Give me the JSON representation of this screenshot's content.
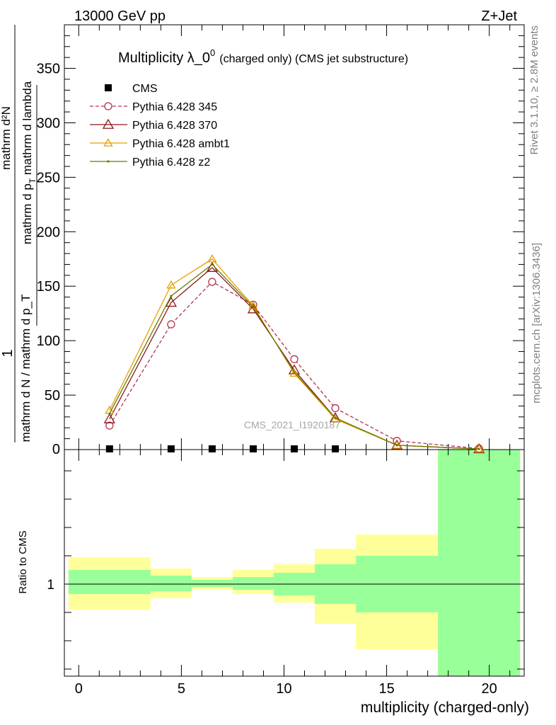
{
  "header": {
    "left": "13000 GeV pp",
    "right": "Z+Jet"
  },
  "side_labels": {
    "rivet": "Rivet 3.1.10, ≥ 2.8M events",
    "mcplots": "mcplots.cern.ch [arXiv:1306.3436]"
  },
  "chart_data": [
    {
      "type": "line",
      "title_main": "Multiplicity λ_0",
      "title_sup": "0",
      "title_extra": "(charged only) (CMS jet substructure)",
      "watermark": "CMS_2021_I1920187",
      "ylabel": {
        "numerator_one": "1",
        "denominator": "mathrm d N / mathrm d p_T",
        "denominator_sub": "T",
        "numerator": "mathrm d²N",
        "numerator_line2": "mathrm d p",
        "numerator_line2_sub": "T",
        "numerator_line2_tail": " mathrm d lambda"
      },
      "xlim": [
        -0.7,
        21.7
      ],
      "ylim": [
        0,
        390
      ],
      "yticks": [
        50,
        100,
        150,
        200,
        250,
        300,
        350
      ],
      "ytick_labels": [
        "50",
        "100",
        "150",
        "200",
        "250",
        "300",
        "350"
      ],
      "y_zero_label": "0",
      "legend_position": "top-left",
      "x": [
        1.5,
        4.5,
        6.5,
        8.5,
        10.5,
        12.5,
        15.5,
        19.5
      ],
      "series": [
        {
          "name": "CMS",
          "color": "#000000",
          "marker": "square",
          "dashed": false,
          "values": [
            0,
            0,
            0,
            0,
            0,
            0,
            null,
            null
          ]
        },
        {
          "name": "Pythia 6.428 345",
          "color": "#b2344f",
          "marker": "circle",
          "dashed": true,
          "values": [
            22,
            115,
            154,
            133,
            83,
            38,
            8,
            1
          ]
        },
        {
          "name": "Pythia 6.428 370",
          "color": "#8b1a1a",
          "marker": "triangle",
          "dashed": false,
          "values": [
            28,
            135,
            167,
            129,
            73,
            29,
            4,
            0.5
          ]
        },
        {
          "name": "Pythia 6.428 ambt1",
          "color": "#e8a000",
          "marker": "triangle",
          "dashed": false,
          "values": [
            36,
            151,
            175,
            132,
            70,
            28,
            4,
            0.5
          ]
        },
        {
          "name": "Pythia 6.428 z2",
          "color": "#6b7a00",
          "marker": "dot",
          "dashed": false,
          "values": [
            33,
            141,
            170,
            131,
            71,
            29,
            4,
            0.5
          ]
        }
      ]
    },
    {
      "type": "area",
      "ylabel": "Ratio to CMS",
      "xlabel": "multiplicity (charged-only)",
      "xlim": [
        -0.7,
        21.7
      ],
      "xticks": [
        0,
        5,
        10,
        15,
        20
      ],
      "xtick_labels": [
        "0",
        "5",
        "10",
        "15",
        "20"
      ],
      "ylim": [
        0.35,
        1.95
      ],
      "ytick_label": "1",
      "reference_line": 1,
      "bands": [
        {
          "x0": -0.5,
          "x1": 3.5,
          "yellow": [
            0.82,
            1.19
          ],
          "green": [
            0.93,
            1.1
          ]
        },
        {
          "x0": 3.5,
          "x1": 5.5,
          "yellow": [
            0.9,
            1.11
          ],
          "green": [
            0.95,
            1.06
          ]
        },
        {
          "x0": 5.5,
          "x1": 7.5,
          "yellow": [
            0.96,
            1.05
          ],
          "green": [
            0.98,
            1.03
          ]
        },
        {
          "x0": 7.5,
          "x1": 9.5,
          "yellow": [
            0.93,
            1.1
          ],
          "green": [
            0.96,
            1.05
          ]
        },
        {
          "x0": 9.5,
          "x1": 11.5,
          "yellow": [
            0.87,
            1.14
          ],
          "green": [
            0.92,
            1.08
          ]
        },
        {
          "x0": 11.5,
          "x1": 13.5,
          "yellow": [
            0.72,
            1.25
          ],
          "green": [
            0.86,
            1.14
          ]
        },
        {
          "x0": 13.5,
          "x1": 17.5,
          "yellow": [
            0.54,
            1.35
          ],
          "green": [
            0.8,
            1.2
          ]
        },
        {
          "x0": 17.5,
          "x1": 21.5,
          "yellow": [
            0.35,
            1.95
          ],
          "green": [
            0.35,
            1.95
          ]
        }
      ],
      "colors": {
        "yellow": "#ffff99",
        "green": "#99ff99"
      }
    }
  ]
}
